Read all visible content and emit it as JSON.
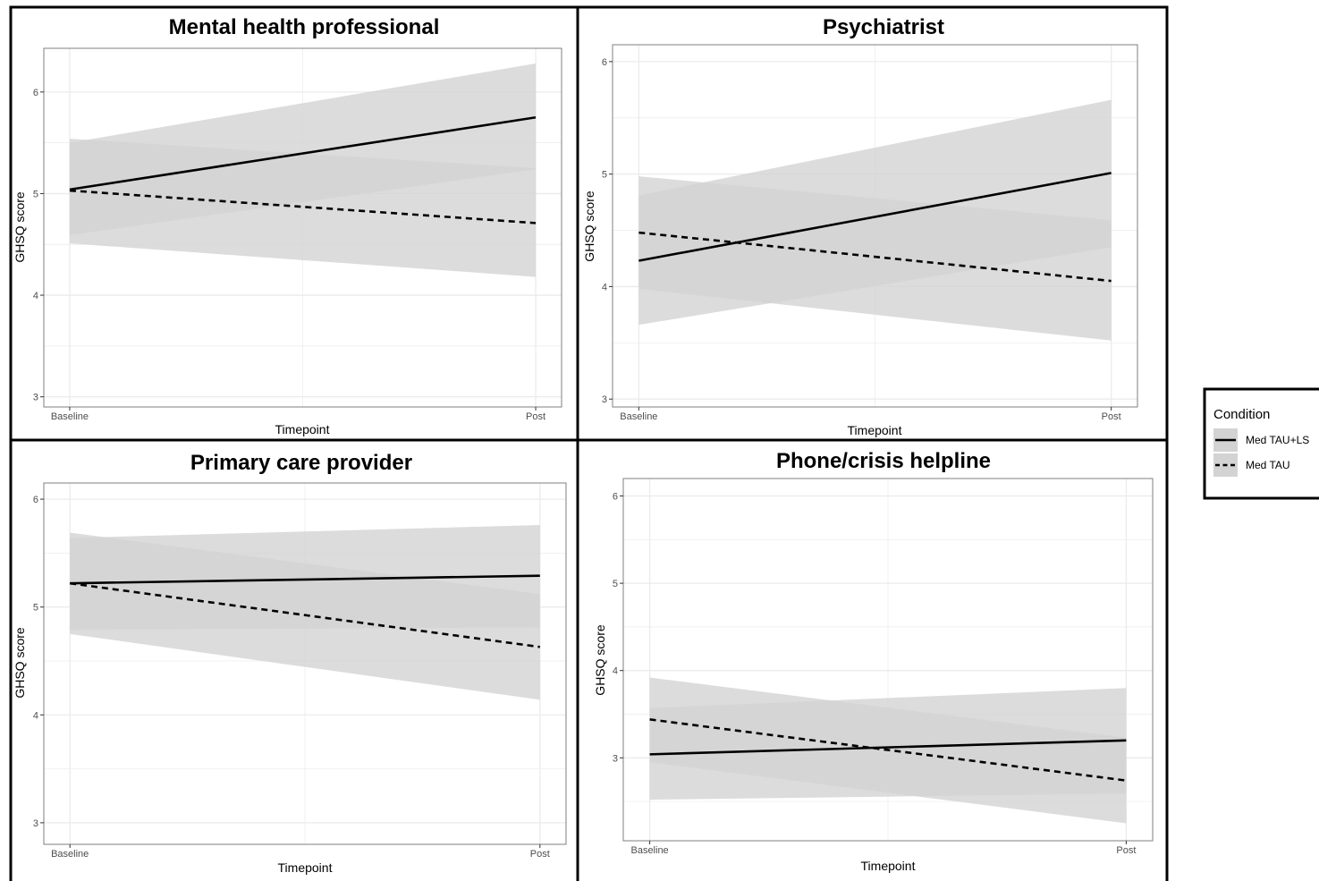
{
  "legend": {
    "title": "Condition",
    "entries": [
      {
        "label": "Med TAU+LS",
        "line": "solid"
      },
      {
        "label": "Med TAU",
        "line": "dashed"
      }
    ]
  },
  "colors": {
    "ribbon": "#d3d3d3",
    "line": "#000000",
    "panel_border": "#000000",
    "plot_border": "#7f7f7f",
    "grid": "#ebebeb",
    "tick_text": "#4d4d4d"
  },
  "chart_data": [
    {
      "type": "line",
      "title": "Mental health professional",
      "xlabel": "Timepoint",
      "ylabel": "GHSQ score",
      "categories": [
        "Baseline",
        "Post"
      ],
      "ylim": [
        2.9,
        6.43
      ],
      "yticks": [
        3,
        4,
        5,
        6
      ],
      "grid": true,
      "series": [
        {
          "name": "Med TAU+LS",
          "line": "solid",
          "values": [
            5.04,
            5.75
          ],
          "lower": [
            4.59,
            5.24
          ],
          "upper": [
            5.5,
            6.28
          ]
        },
        {
          "name": "Med TAU",
          "line": "dashed",
          "values": [
            5.03,
            4.71
          ],
          "lower": [
            4.51,
            4.18
          ],
          "upper": [
            5.54,
            5.25
          ]
        }
      ]
    },
    {
      "type": "line",
      "title": "Psychiatrist",
      "xlabel": "Timepoint",
      "ylabel": "GHSQ score",
      "categories": [
        "Baseline",
        "Post"
      ],
      "ylim": [
        2.93,
        6.15
      ],
      "yticks": [
        3,
        4,
        5,
        6
      ],
      "grid": true,
      "series": [
        {
          "name": "Med TAU+LS",
          "line": "solid",
          "values": [
            4.23,
            5.01
          ],
          "lower": [
            3.66,
            4.35
          ],
          "upper": [
            4.81,
            5.66
          ]
        },
        {
          "name": "Med TAU",
          "line": "dashed",
          "values": [
            4.48,
            4.05
          ],
          "lower": [
            3.98,
            3.52
          ],
          "upper": [
            4.98,
            4.59
          ]
        }
      ]
    },
    {
      "type": "line",
      "title": "Primary care provider",
      "xlabel": "Timepoint",
      "ylabel": "GHSQ score",
      "categories": [
        "Baseline",
        "Post"
      ],
      "ylim": [
        2.8,
        6.15
      ],
      "yticks": [
        3,
        4,
        5,
        6
      ],
      "grid": true,
      "series": [
        {
          "name": "Med TAU+LS",
          "line": "solid",
          "values": [
            5.22,
            5.29
          ],
          "lower": [
            4.79,
            4.81
          ],
          "upper": [
            5.64,
            5.76
          ]
        },
        {
          "name": "Med TAU",
          "line": "dashed",
          "values": [
            5.22,
            4.63
          ],
          "lower": [
            4.75,
            4.14
          ],
          "upper": [
            5.69,
            5.12
          ]
        }
      ]
    },
    {
      "type": "line",
      "title": "Phone/crisis helpline",
      "xlabel": "Timepoint",
      "ylabel": "GHSQ score",
      "categories": [
        "Baseline",
        "Post"
      ],
      "ylim": [
        2.05,
        6.2
      ],
      "yticks": [
        3,
        4,
        5,
        6
      ],
      "grid": true,
      "series": [
        {
          "name": "Med TAU+LS",
          "line": "solid",
          "values": [
            3.04,
            3.2
          ],
          "lower": [
            2.52,
            2.59
          ],
          "upper": [
            3.57,
            3.8
          ]
        },
        {
          "name": "Med TAU",
          "line": "dashed",
          "values": [
            3.44,
            2.74
          ],
          "lower": [
            2.95,
            2.25
          ],
          "upper": [
            3.92,
            3.23
          ]
        }
      ]
    }
  ]
}
